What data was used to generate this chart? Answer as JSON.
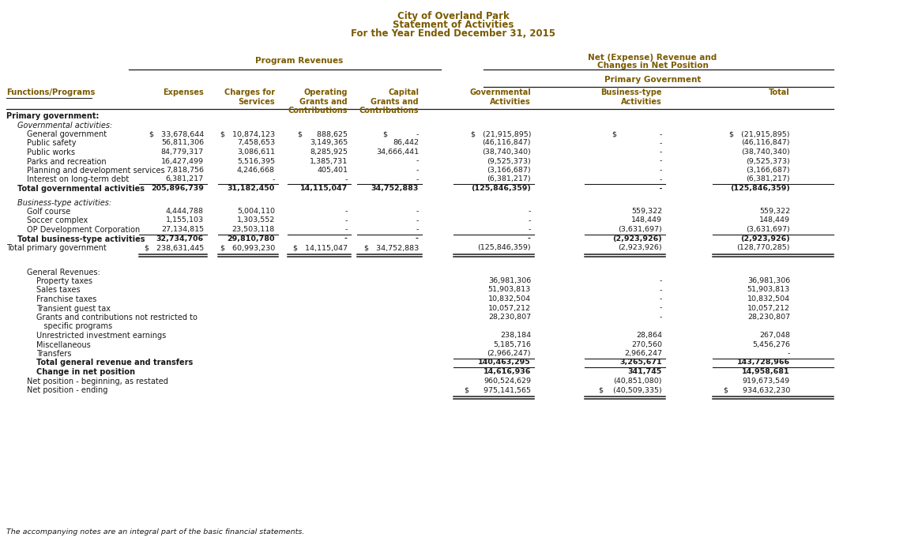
{
  "title_lines": [
    "City of Overland Park",
    "Statement of Activities",
    "For the Year Ended December 31, 2015"
  ],
  "hc": "#7B5B00",
  "tc": "#1a1a1a",
  "bg": "#ffffff",
  "footnote": "The accompanying notes are an integral part of the basic financial statements.",
  "col_x": {
    "label": 0.008,
    "expenses_r": 0.228,
    "charges_r": 0.318,
    "opg_r": 0.408,
    "capg_r": 0.498,
    "gov_r": 0.622,
    "biz_r": 0.79,
    "tot_r": 0.968
  },
  "rows": [
    {
      "type": "header",
      "label": "Primary government:",
      "bold": true,
      "indent": 0
    },
    {
      "type": "subheader",
      "label": "Governmental activities:",
      "bold": false,
      "italic": true,
      "indent": 1
    },
    {
      "type": "data",
      "label": "General government",
      "indent": 2,
      "bold": false,
      "exp": "$   33,678,644",
      "chg": "$   10,874,123",
      "opg": "$      888,625",
      "cpg": "$            -",
      "gov": "$   (21,915,895)",
      "biz": "$                  -",
      "tot": "$   (21,915,895)"
    },
    {
      "type": "data",
      "label": "Public safety",
      "indent": 2,
      "bold": false,
      "exp": "56,811,306",
      "chg": "7,458,653",
      "opg": "3,149,365",
      "cpg": "86,442",
      "gov": "(46,116,847)",
      "biz": "                  -",
      "tot": "(46,116,847)"
    },
    {
      "type": "data",
      "label": "Public works",
      "indent": 2,
      "bold": false,
      "exp": "84,779,317",
      "chg": "3,086,611",
      "opg": "8,285,925",
      "cpg": "34,666,441",
      "gov": "(38,740,340)",
      "biz": "                  -",
      "tot": "(38,740,340)"
    },
    {
      "type": "data",
      "label": "Parks and recreation",
      "indent": 2,
      "bold": false,
      "exp": "16,427,499",
      "chg": "5,516,395",
      "opg": "1,385,731",
      "cpg": "                -",
      "gov": "(9,525,373)",
      "biz": "                  -",
      "tot": "(9,525,373)"
    },
    {
      "type": "data",
      "label": "Planning and development services",
      "indent": 2,
      "bold": false,
      "exp": "7,818,756",
      "chg": "4,246,668",
      "opg": "405,401",
      "cpg": "                -",
      "gov": "(3,166,687)",
      "biz": "                  -",
      "tot": "(3,166,687)"
    },
    {
      "type": "data",
      "label": "Interest on long-term debt",
      "indent": 2,
      "bold": false,
      "exp": "6,381,217",
      "chg": "                -",
      "opg": "                -",
      "cpg": "                -",
      "gov": "(6,381,217)",
      "biz": "                  -",
      "tot": "(6,381,217)"
    },
    {
      "type": "total",
      "label": "Total governmental activities",
      "indent": 1,
      "bold": true,
      "exp": "205,896,739",
      "chg": "31,182,450",
      "opg": "14,115,047",
      "cpg": "34,752,883",
      "gov": "(125,846,359)",
      "biz": "                  -",
      "tot": "(125,846,359)"
    },
    {
      "type": "spacer"
    },
    {
      "type": "subheader",
      "label": "Business-type activities:",
      "bold": false,
      "italic": true,
      "indent": 1
    },
    {
      "type": "data",
      "label": "Golf course",
      "indent": 2,
      "bold": false,
      "exp": "4,444,788",
      "chg": "5,004,110",
      "opg": "                -",
      "cpg": "                -",
      "gov": "                -",
      "biz": "559,322",
      "tot": "559,322"
    },
    {
      "type": "data",
      "label": "Soccer complex",
      "indent": 2,
      "bold": false,
      "exp": "1,155,103",
      "chg": "1,303,552",
      "opg": "                -",
      "cpg": "                -",
      "gov": "                -",
      "biz": "148,449",
      "tot": "148,449"
    },
    {
      "type": "data",
      "label": "OP Development Corporation",
      "indent": 2,
      "bold": false,
      "exp": "27,134,815",
      "chg": "23,503,118",
      "opg": "                -",
      "cpg": "                -",
      "gov": "                -",
      "biz": "(3,631,697)",
      "tot": "(3,631,697)"
    },
    {
      "type": "total",
      "label": "Total business-type activities",
      "indent": 1,
      "bold": true,
      "exp": "32,734,706",
      "chg": "29,810,780",
      "opg": "                -",
      "cpg": "                -",
      "gov": "                -",
      "biz": "(2,923,926)",
      "tot": "(2,923,926)"
    },
    {
      "type": "grandtotal",
      "label": "Total primary government",
      "indent": 0,
      "bold": false,
      "exp": "$   238,631,445",
      "chg": "$   60,993,230",
      "opg": "$   14,115,047",
      "cpg": "$   34,752,883",
      "gov": "(125,846,359)",
      "biz": "(2,923,926)",
      "tot": "(128,770,285)"
    },
    {
      "type": "spacer"
    },
    {
      "type": "spacer"
    },
    {
      "type": "gen_header",
      "label": "General Revenues:",
      "indent": 2
    },
    {
      "type": "gen_data",
      "label": "Property taxes",
      "indent": 3,
      "gov": "36,981,306",
      "biz": "                  -",
      "tot": "36,981,306"
    },
    {
      "type": "gen_data",
      "label": "Sales taxes",
      "indent": 3,
      "gov": "51,903,813",
      "biz": "                  -",
      "tot": "51,903,813"
    },
    {
      "type": "gen_data",
      "label": "Franchise taxes",
      "indent": 3,
      "gov": "10,832,504",
      "biz": "                  -",
      "tot": "10,832,504"
    },
    {
      "type": "gen_data",
      "label": "Transient guest tax",
      "indent": 3,
      "gov": "10,057,212",
      "biz": "                  -",
      "tot": "10,057,212"
    },
    {
      "type": "gen_data2",
      "label": "Grants and contributions not restricted to",
      "label2": "   specific programs",
      "indent": 3,
      "gov": "28,230,807",
      "biz": "                  -",
      "tot": "28,230,807"
    },
    {
      "type": "gen_data",
      "label": "Unrestricted investment earnings",
      "indent": 3,
      "gov": "238,184",
      "biz": "28,864",
      "tot": "267,048"
    },
    {
      "type": "gen_data",
      "label": "Miscellaneous",
      "indent": 3,
      "gov": "5,185,716",
      "biz": "270,560",
      "tot": "5,456,276"
    },
    {
      "type": "gen_data",
      "label": "Transfers",
      "indent": 3,
      "gov": "(2,966,247)",
      "biz": "2,966,247",
      "tot": "                  -"
    },
    {
      "type": "gen_total",
      "label": "Total general revenue and transfers",
      "indent": 3,
      "bold": true,
      "gov": "140,463,295",
      "biz": "3,265,671",
      "tot": "143,728,966"
    },
    {
      "type": "gen_total",
      "label": "Change in net position",
      "indent": 3,
      "bold": true,
      "gov": "14,616,936",
      "biz": "341,745",
      "tot": "14,958,681"
    },
    {
      "type": "gen_data",
      "label": "Net position - beginning, as restated",
      "indent": 2,
      "bold": false,
      "gov": "960,524,629",
      "biz": "(40,851,080)",
      "tot": "919,673,549"
    },
    {
      "type": "gen_final",
      "label": "Net position - ending",
      "indent": 2,
      "bold": false,
      "gov": "$      975,141,565",
      "biz": "$    (40,509,335)",
      "tot": "$      934,632,230"
    }
  ]
}
